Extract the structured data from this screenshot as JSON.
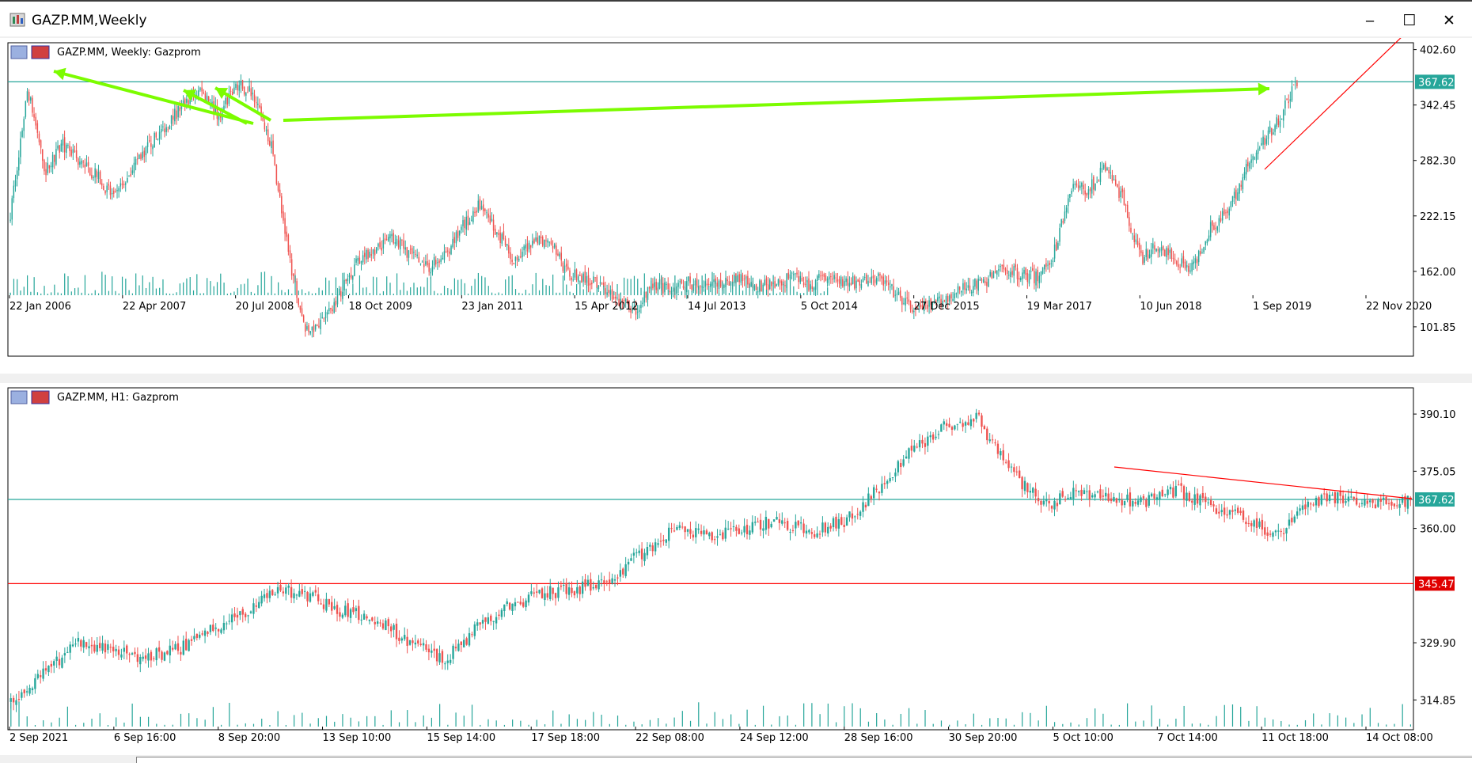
{
  "window": {
    "title": "GAZP.MM,Weekly",
    "app_icon": "chart-app-icon",
    "buttons": {
      "minimize": "‒",
      "maximize": "☐",
      "close": "✕"
    }
  },
  "colors": {
    "bull": "#26a69a",
    "bear": "#ef5350",
    "grid": "#c8c8c8",
    "level": "#26a69a",
    "level_red": "#ff0000",
    "arrow": "#7cfc00"
  },
  "charts": [
    {
      "label": "GAZP.MM, Weekly:  Gazprom",
      "symbol_icons": [
        "table-icon",
        "symbol-icon"
      ],
      "price_ticks": [
        "402.60",
        "342.45",
        "282.30",
        "222.15",
        "162.00",
        "101.85"
      ],
      "current_price": "367.62",
      "time_ticks": [
        "22 Jan 2006",
        "22 Apr 2007",
        "20 Jul 2008",
        "18 Oct 2009",
        "23 Jan 2011",
        "15 Apr 2012",
        "14 Jul 2013",
        "5 Oct 2014",
        "27 Dec 2015",
        "19 Mar 2017",
        "10 Jun 2018",
        "1 Sep 2019",
        "22 Nov 2020"
      ]
    },
    {
      "label": "GAZP.MM, H1:  Gazprom",
      "symbol_icons": [
        "table-icon",
        "symbol-icon"
      ],
      "price_ticks": [
        "390.10",
        "375.05",
        "360.00",
        "329.90",
        "314.85"
      ],
      "current_price": "367.62",
      "red_level": "345.47",
      "time_ticks": [
        "2 Sep 2021",
        "6 Sep 16:00",
        "8 Sep 20:00",
        "13 Sep 10:00",
        "15 Sep 14:00",
        "17 Sep 18:00",
        "22 Sep 08:00",
        "24 Sep 12:00",
        "28 Sep 16:00",
        "30 Sep 20:00",
        "5 Oct 10:00",
        "7 Oct 14:00",
        "11 Oct 18:00",
        "14 Oct 08:00"
      ]
    }
  ],
  "chart_data": [
    {
      "type": "candlestick",
      "title": "GAZP.MM, Weekly:  Gazprom",
      "x_labels": [
        "22 Jan 2006",
        "22 Apr 2007",
        "20 Jul 2008",
        "18 Oct 2009",
        "23 Jan 2011",
        "15 Apr 2012",
        "14 Jul 2013",
        "5 Oct 2014",
        "27 Dec 2015",
        "19 Mar 2017",
        "10 Jun 2018",
        "1 Sep 2019",
        "22 Nov 2020"
      ],
      "price_range": [
        70,
        410
      ],
      "close_path": [
        [
          0,
          225
        ],
        [
          1,
          360
        ],
        [
          2,
          270
        ],
        [
          3,
          300
        ],
        [
          4,
          280
        ],
        [
          5,
          265
        ],
        [
          6,
          240
        ],
        [
          7,
          275
        ],
        [
          8,
          300
        ],
        [
          9,
          320
        ],
        [
          10,
          345
        ],
        [
          11,
          360
        ],
        [
          12,
          330
        ],
        [
          13,
          365
        ],
        [
          14,
          355
        ],
        [
          15,
          300
        ],
        [
          16,
          180
        ],
        [
          17,
          95
        ],
        [
          18,
          110
        ],
        [
          19,
          140
        ],
        [
          20,
          175
        ],
        [
          21,
          185
        ],
        [
          22,
          200
        ],
        [
          23,
          180
        ],
        [
          24,
          165
        ],
        [
          25,
          180
        ],
        [
          26,
          210
        ],
        [
          27,
          235
        ],
        [
          28,
          205
        ],
        [
          29,
          175
        ],
        [
          30,
          190
        ],
        [
          31,
          200
        ],
        [
          32,
          160
        ],
        [
          33,
          155
        ],
        [
          34,
          145
        ],
        [
          35,
          130
        ],
        [
          36,
          120
        ],
        [
          37,
          150
        ],
        [
          38,
          140
        ],
        [
          39,
          150
        ],
        [
          40,
          145
        ],
        [
          41,
          150
        ],
        [
          42,
          155
        ],
        [
          43,
          145
        ],
        [
          44,
          150
        ],
        [
          45,
          155
        ],
        [
          46,
          145
        ],
        [
          47,
          160
        ],
        [
          48,
          150
        ],
        [
          49,
          150
        ],
        [
          50,
          155
        ],
        [
          51,
          135
        ],
        [
          52,
          120
        ],
        [
          53,
          125
        ],
        [
          54,
          135
        ],
        [
          55,
          145
        ],
        [
          56,
          150
        ],
        [
          57,
          165
        ],
        [
          58,
          160
        ],
        [
          59,
          155
        ],
        [
          60,
          180
        ],
        [
          61,
          255
        ],
        [
          62,
          250
        ],
        [
          63,
          275
        ],
        [
          64,
          240
        ],
        [
          65,
          175
        ],
        [
          66,
          190
        ],
        [
          67,
          175
        ],
        [
          68,
          165
        ],
        [
          69,
          210
        ],
        [
          70,
          225
        ],
        [
          71,
          270
        ],
        [
          72,
          300
        ],
        [
          73,
          330
        ],
        [
          74,
          368
        ]
      ],
      "current_price": 367.62,
      "levels": [
        367.62
      ],
      "trendline": "red diagonal support from ~270 (late 2020) rising to chart top",
      "annotations": "green arrows pointing at 2006-2008 highs and 2021 high"
    },
    {
      "type": "candlestick",
      "title": "GAZP.MM, H1:  Gazprom",
      "x_labels": [
        "2 Sep 2021",
        "6 Sep 16:00",
        "8 Sep 20:00",
        "13 Sep 10:00",
        "15 Sep 14:00",
        "17 Sep 18:00",
        "22 Sep 08:00",
        "24 Sep 12:00",
        "28 Sep 16:00",
        "30 Sep 20:00",
        "5 Oct 10:00",
        "7 Oct 14:00",
        "11 Oct 18:00",
        "14 Oct 08:00"
      ],
      "price_range": [
        307,
        397
      ],
      "close_path": [
        [
          0,
          314
        ],
        [
          1,
          322
        ],
        [
          2,
          330
        ],
        [
          3,
          328
        ],
        [
          4,
          326
        ],
        [
          5,
          328
        ],
        [
          6,
          333
        ],
        [
          7,
          338
        ],
        [
          8,
          344
        ],
        [
          9,
          342
        ],
        [
          10,
          338
        ],
        [
          11,
          336
        ],
        [
          12,
          330
        ],
        [
          13,
          325
        ],
        [
          14,
          334
        ],
        [
          15,
          340
        ],
        [
          16,
          343
        ],
        [
          17,
          344
        ],
        [
          18,
          347
        ],
        [
          19,
          354
        ],
        [
          20,
          360
        ],
        [
          21,
          358
        ],
        [
          22,
          360
        ],
        [
          23,
          362
        ],
        [
          24,
          359
        ],
        [
          25,
          362
        ],
        [
          26,
          370
        ],
        [
          27,
          380
        ],
        [
          28,
          387
        ],
        [
          29,
          389
        ],
        [
          30,
          375
        ],
        [
          31,
          366
        ],
        [
          32,
          370
        ],
        [
          33,
          368
        ],
        [
          34,
          367
        ],
        [
          35,
          370
        ],
        [
          36,
          366
        ],
        [
          37,
          363
        ],
        [
          38,
          358
        ],
        [
          39,
          367
        ],
        [
          40,
          368
        ],
        [
          41,
          367
        ],
        [
          42,
          367
        ]
      ],
      "current_price": 367.62,
      "levels": [
        367.62,
        345.47
      ],
      "trendline": "red descending line from ~373 (7 Oct) to ~367 (14 Oct)"
    }
  ]
}
